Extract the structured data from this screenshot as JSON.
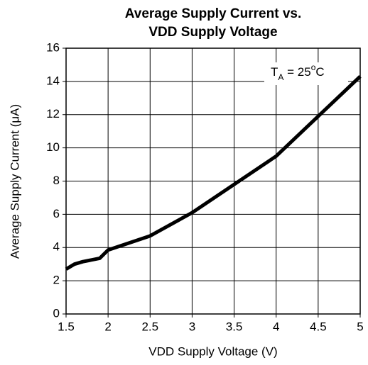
{
  "chart_data": {
    "type": "line",
    "title": [
      "Average Supply Current vs.",
      "VDD Supply Voltage"
    ],
    "xlabel": "VDD Supply Voltage (V)",
    "ylabel": "Average Supply Current (μA)",
    "annotation": [
      {
        "text": "T"
      },
      {
        "text": "A",
        "style": "sub"
      },
      {
        "text": " = 25"
      },
      {
        "text": "o",
        "style": "sup"
      },
      {
        "text": "C"
      }
    ],
    "x": [
      1.5,
      1.6,
      1.7,
      1.9,
      2.0,
      2.5,
      3.0,
      3.5,
      4.0,
      4.5,
      5.0
    ],
    "values": [
      2.7,
      3.0,
      3.15,
      3.35,
      3.85,
      4.7,
      6.1,
      7.8,
      9.5,
      11.9,
      14.3
    ],
    "color": "#000000",
    "xlim": [
      1.5,
      5
    ],
    "xticks": [
      1.5,
      2,
      2.5,
      3,
      3.5,
      4,
      4.5,
      5
    ],
    "ylim": [
      0,
      16
    ],
    "yticks": [
      0,
      2,
      4,
      6,
      8,
      10,
      12,
      14,
      16
    ],
    "grid": true
  }
}
